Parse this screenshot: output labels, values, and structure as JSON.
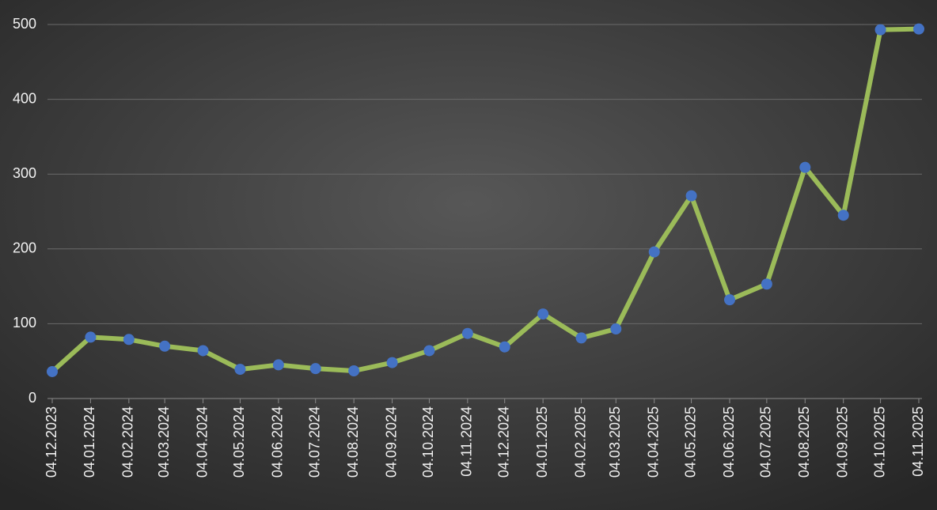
{
  "chart_data": {
    "type": "line",
    "x": [
      "04.12.2023",
      "04.01.2024",
      "04.02.2024",
      "04.03.2024",
      "04.04.2024",
      "04.05.2024",
      "04.06.2024",
      "04.07.2024",
      "04.08.2024",
      "04.09.2024",
      "04.10.2024",
      "04.11.2024",
      "04.12.2024",
      "04.01.2025",
      "04.02.2025",
      "04.03.2025",
      "04.04.2025",
      "04.05.2025",
      "04.06.2025",
      "04.07.2025",
      "04.08.2025",
      "04.09.2025",
      "04.10.2025",
      "04.11.2025"
    ],
    "series": [
      {
        "color": "#9bbb59",
        "marker_color": "#4472c4",
        "values": [
          36,
          82,
          79,
          70,
          64,
          39,
          45,
          40,
          37,
          48,
          64,
          87,
          69,
          113,
          81,
          93,
          196,
          271,
          132,
          153,
          309,
          245,
          493,
          494
        ]
      }
    ],
    "ylim": [
      0,
      500
    ],
    "yticks": [
      0,
      100,
      200,
      300,
      400,
      500
    ],
    "grid": true
  }
}
